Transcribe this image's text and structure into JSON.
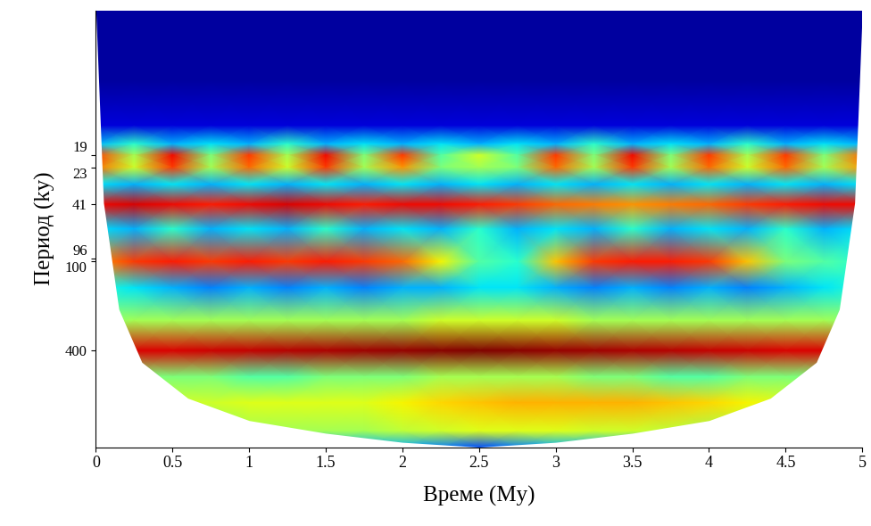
{
  "chart_data": {
    "type": "heatmap",
    "x_label": "Време (My)",
    "y_label": "Период (ky)",
    "log": "y",
    "color": "jet",
    "xlim": [
      0,
      5
    ],
    "ylim": [
      1800,
      2
    ],
    "xticks": [
      0,
      0.5,
      1,
      1.5,
      2,
      2.5,
      3,
      3.5,
      4,
      4.5,
      5
    ],
    "yticks": [
      19,
      23,
      41,
      96,
      100,
      400
    ],
    "x": [
      0,
      0.25,
      0.5,
      0.75,
      1,
      1.25,
      1.5,
      1.75,
      2,
      2.25,
      2.5,
      2.75,
      3,
      3.25,
      3.5,
      3.75,
      4,
      4.25,
      4.5,
      4.75,
      5
    ],
    "y": [
      2,
      6,
      12,
      16,
      19,
      23,
      30,
      41,
      60,
      100,
      150,
      250,
      400,
      600,
      900,
      1400,
      1800
    ],
    "value_range": [
      0,
      1
    ],
    "cells": [
      [
        0.03,
        0.03,
        0.03,
        0.03,
        0.03,
        0.03,
        0.03,
        0.03,
        0.03,
        0.03,
        0.03,
        0.03,
        0.03,
        0.03,
        0.03,
        0.03,
        0.03,
        0.03,
        0.03,
        0.03,
        0.03
      ],
      [
        0.03,
        0.03,
        0.03,
        0.03,
        0.03,
        0.03,
        0.03,
        0.03,
        0.03,
        0.03,
        0.03,
        0.03,
        0.03,
        0.03,
        0.03,
        0.03,
        0.03,
        0.03,
        0.03,
        0.03,
        0.03
      ],
      [
        0.08,
        0.08,
        0.08,
        0.08,
        0.08,
        0.08,
        0.08,
        0.08,
        0.08,
        0.08,
        0.08,
        0.08,
        0.08,
        0.08,
        0.08,
        0.08,
        0.08,
        0.08,
        0.08,
        0.08,
        0.08
      ],
      [
        0.3,
        0.4,
        0.3,
        0.35,
        0.3,
        0.4,
        0.3,
        0.35,
        0.3,
        0.35,
        0.3,
        0.35,
        0.3,
        0.4,
        0.3,
        0.35,
        0.3,
        0.4,
        0.3,
        0.35,
        0.3
      ],
      [
        0.85,
        0.55,
        0.9,
        0.5,
        0.85,
        0.55,
        0.9,
        0.5,
        0.85,
        0.45,
        0.6,
        0.45,
        0.85,
        0.5,
        0.9,
        0.5,
        0.85,
        0.55,
        0.85,
        0.5,
        0.8
      ],
      [
        0.8,
        0.6,
        0.85,
        0.55,
        0.8,
        0.6,
        0.85,
        0.55,
        0.75,
        0.5,
        0.55,
        0.5,
        0.8,
        0.55,
        0.85,
        0.55,
        0.8,
        0.6,
        0.8,
        0.55,
        0.75
      ],
      [
        0.35,
        0.3,
        0.35,
        0.3,
        0.35,
        0.3,
        0.35,
        0.3,
        0.35,
        0.3,
        0.35,
        0.3,
        0.35,
        0.3,
        0.35,
        0.3,
        0.35,
        0.3,
        0.35,
        0.3,
        0.35
      ],
      [
        0.9,
        0.92,
        0.9,
        0.88,
        0.9,
        0.92,
        0.9,
        0.88,
        0.9,
        0.9,
        0.88,
        0.85,
        0.8,
        0.78,
        0.75,
        0.78,
        0.8,
        0.85,
        0.88,
        0.9,
        0.9
      ],
      [
        0.35,
        0.3,
        0.4,
        0.3,
        0.35,
        0.3,
        0.4,
        0.3,
        0.35,
        0.3,
        0.4,
        0.3,
        0.35,
        0.3,
        0.4,
        0.3,
        0.35,
        0.3,
        0.4,
        0.3,
        0.35
      ],
      [
        0.75,
        0.85,
        0.88,
        0.85,
        0.88,
        0.85,
        0.88,
        0.85,
        0.8,
        0.65,
        0.45,
        0.4,
        0.7,
        0.85,
        0.88,
        0.88,
        0.85,
        0.7,
        0.5,
        0.45,
        0.4
      ],
      [
        0.4,
        0.35,
        0.3,
        0.25,
        0.3,
        0.25,
        0.3,
        0.25,
        0.3,
        0.3,
        0.35,
        0.35,
        0.3,
        0.25,
        0.3,
        0.25,
        0.3,
        0.25,
        0.3,
        0.35,
        0.4
      ],
      [
        0.5,
        0.55,
        0.55,
        0.55,
        0.55,
        0.55,
        0.55,
        0.55,
        0.55,
        0.6,
        0.6,
        0.6,
        0.6,
        0.55,
        0.55,
        0.55,
        0.55,
        0.55,
        0.55,
        0.55,
        0.5
      ],
      [
        0.9,
        0.92,
        0.92,
        0.93,
        0.94,
        0.95,
        0.96,
        0.97,
        0.98,
        0.99,
        1.0,
        0.99,
        0.98,
        0.97,
        0.96,
        0.95,
        0.94,
        0.93,
        0.92,
        0.92,
        0.9
      ],
      [
        0.5,
        0.5,
        0.5,
        0.5,
        0.45,
        0.45,
        0.5,
        0.5,
        0.5,
        0.55,
        0.55,
        0.55,
        0.55,
        0.5,
        0.5,
        0.45,
        0.45,
        0.5,
        0.5,
        0.5,
        0.5
      ],
      [
        0.6,
        0.6,
        0.6,
        0.6,
        0.62,
        0.62,
        0.62,
        0.62,
        0.65,
        0.68,
        0.7,
        0.72,
        0.72,
        0.72,
        0.72,
        0.7,
        0.68,
        0.65,
        0.62,
        0.6,
        0.6
      ],
      [
        0.5,
        0.5,
        0.5,
        0.5,
        0.55,
        0.55,
        0.55,
        0.55,
        0.58,
        0.6,
        0.62,
        0.62,
        0.62,
        0.6,
        0.6,
        0.58,
        0.55,
        0.55,
        0.5,
        0.5,
        0.5
      ],
      [
        0.3,
        0.3,
        0.3,
        0.3,
        0.3,
        0.3,
        0.3,
        0.3,
        0.3,
        0.25,
        0.2,
        0.25,
        0.3,
        0.3,
        0.3,
        0.3,
        0.3,
        0.3,
        0.3,
        0.3,
        0.3
      ]
    ],
    "cone_of_influence": {
      "x": [
        0,
        0.05,
        0.15,
        0.3,
        0.6,
        1,
        1.5,
        2,
        2.5,
        3,
        3.5,
        4,
        4.4,
        4.7,
        4.85,
        4.95,
        5
      ],
      "y": [
        2,
        40,
        210,
        480,
        840,
        1190,
        1450,
        1670,
        1800,
        1670,
        1450,
        1190,
        840,
        480,
        210,
        40,
        2
      ]
    }
  }
}
